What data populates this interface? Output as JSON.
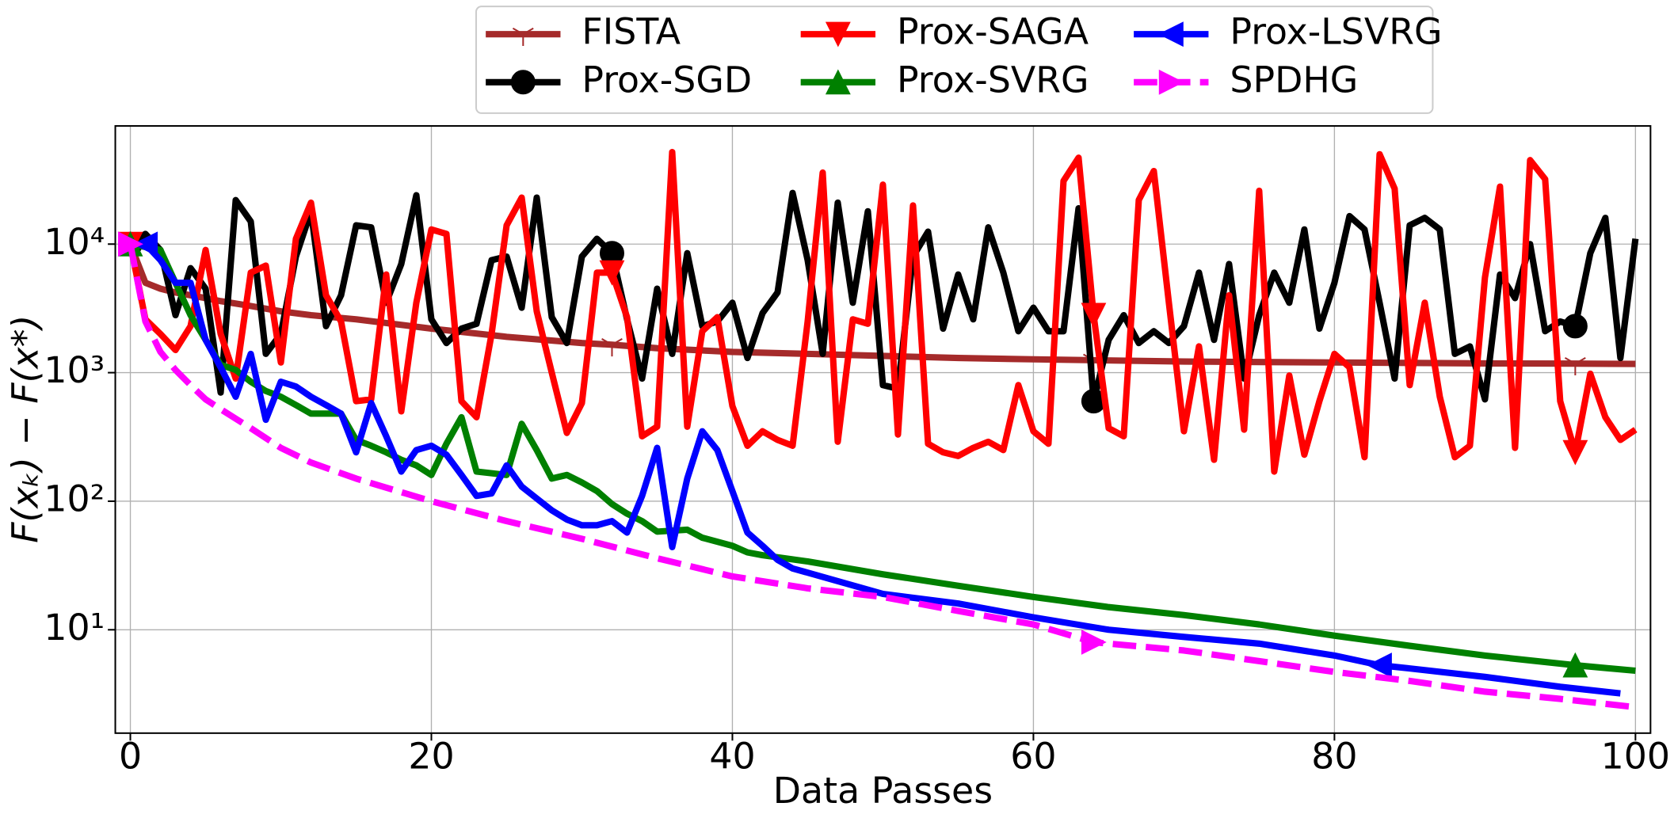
{
  "chart_data": {
    "type": "line",
    "xlabel": "Data Passes",
    "ylabel": "F(xₖ) − F(x*)",
    "xlim": [
      -1,
      101
    ],
    "ylim": [
      1.57,
      83000
    ],
    "yscale": "log",
    "xticks": [
      0,
      20,
      40,
      60,
      80,
      100
    ],
    "yticks": [
      {
        "value": 10,
        "label": "10¹"
      },
      {
        "value": 100,
        "label": "10²"
      },
      {
        "value": 1000,
        "label": "10³"
      },
      {
        "value": 10000,
        "label": "10⁴"
      }
    ],
    "grid": true,
    "legend": {
      "location": "upper center",
      "ncol": 3
    },
    "series": [
      {
        "name": "FISTA",
        "color": "#a52a2a",
        "marker": "tri_down_lines",
        "dash": false,
        "marker_x": [
          0,
          32,
          64,
          96
        ],
        "x": [
          0,
          1,
          2,
          3,
          4,
          5,
          6,
          8,
          10,
          12,
          15,
          20,
          25,
          30,
          32,
          35,
          40,
          45,
          50,
          55,
          60,
          64,
          70,
          75,
          80,
          85,
          90,
          96,
          100
        ],
        "values": [
          10000,
          5000,
          4500,
          4200,
          4000,
          3800,
          3600,
          3300,
          3000,
          2800,
          2600,
          2200,
          1900,
          1700,
          1650,
          1550,
          1450,
          1400,
          1350,
          1300,
          1270,
          1250,
          1220,
          1210,
          1200,
          1190,
          1180,
          1175,
          1170
        ]
      },
      {
        "name": "Prox-SGD",
        "color": "#000000",
        "marker": "circle",
        "dash": false,
        "marker_x": [
          0,
          32,
          64,
          96
        ],
        "x": [
          0,
          1,
          2,
          3,
          4,
          5,
          6,
          7,
          8,
          9,
          10,
          11,
          12,
          13,
          14,
          15,
          16,
          17,
          18,
          19,
          20,
          21,
          22,
          23,
          24,
          25,
          26,
          27,
          28,
          29,
          30,
          31,
          32,
          33,
          34,
          35,
          36,
          37,
          38,
          39,
          40,
          41,
          42,
          43,
          44,
          45,
          46,
          47,
          48,
          49,
          50,
          51,
          52,
          53,
          54,
          55,
          56,
          57,
          58,
          59,
          60,
          61,
          62,
          63,
          64,
          65,
          66,
          67,
          68,
          69,
          70,
          71,
          72,
          73,
          74,
          75,
          76,
          77,
          78,
          79,
          80,
          81,
          82,
          83,
          84,
          85,
          86,
          87,
          88,
          89,
          90,
          91,
          92,
          93,
          94,
          95,
          96,
          97,
          98,
          99,
          100
        ],
        "values": [
          10000,
          12000,
          9000,
          2800,
          6500,
          4500,
          700,
          22000,
          15000,
          1400,
          2000,
          8000,
          18000,
          2300,
          4000,
          14000,
          13500,
          3500,
          7000,
          24000,
          2600,
          1700,
          2200,
          2400,
          7500,
          8000,
          3200,
          23000,
          2700,
          1700,
          8000,
          11000,
          8500,
          2600,
          900,
          4500,
          1400,
          8500,
          2300,
          2500,
          3500,
          1300,
          2900,
          4200,
          25000,
          7500,
          1400,
          21000,
          3500,
          18000,
          800,
          750,
          8000,
          12500,
          2200,
          5800,
          2600,
          13500,
          6000,
          2100,
          3200,
          2100,
          2100,
          19000,
          600,
          1800,
          2800,
          1700,
          2100,
          1700,
          2300,
          6000,
          1800,
          7000,
          900,
          2800,
          6000,
          3500,
          13000,
          2200,
          5000,
          16500,
          13000,
          3500,
          900,
          14000,
          16000,
          13000,
          1400,
          1600,
          620,
          5800,
          3800,
          10000,
          2100,
          2500,
          2300,
          8500,
          16000,
          1300,
          11000
        ]
      },
      {
        "name": "Prox-SAGA",
        "color": "#ff0000",
        "marker": "tri_down",
        "dash": false,
        "marker_x": [
          0,
          32,
          64,
          96
        ],
        "x": [
          0,
          1,
          2,
          3,
          4,
          5,
          6,
          7,
          8,
          9,
          10,
          11,
          12,
          13,
          14,
          15,
          16,
          17,
          18,
          19,
          20,
          21,
          22,
          23,
          24,
          25,
          26,
          27,
          28,
          29,
          30,
          31,
          32,
          33,
          34,
          35,
          36,
          37,
          38,
          39,
          40,
          41,
          42,
          43,
          44,
          45,
          46,
          47,
          48,
          49,
          50,
          51,
          52,
          53,
          54,
          55,
          56,
          57,
          58,
          59,
          60,
          61,
          62,
          63,
          64,
          65,
          66,
          67,
          68,
          69,
          70,
          71,
          72,
          73,
          74,
          75,
          76,
          77,
          78,
          79,
          80,
          81,
          82,
          83,
          84,
          85,
          86,
          87,
          88,
          89,
          90,
          91,
          92,
          93,
          94,
          95,
          96,
          97,
          98,
          99,
          100
        ],
        "values": [
          10000,
          2600,
          2000,
          1500,
          2300,
          9000,
          2000,
          900,
          6000,
          6800,
          1200,
          11000,
          21000,
          4000,
          2500,
          600,
          620,
          5800,
          500,
          3500,
          13000,
          12000,
          600,
          450,
          2000,
          14000,
          23000,
          3000,
          1000,
          340,
          580,
          6000,
          6000,
          2700,
          320,
          380,
          52000,
          380,
          2100,
          2700,
          550,
          270,
          350,
          300,
          270,
          2500,
          36000,
          290,
          2600,
          2400,
          29000,
          330,
          20000,
          280,
          240,
          225,
          260,
          290,
          250,
          800,
          350,
          280,
          31000,
          47000,
          2800,
          370,
          320,
          22000,
          37000,
          3500,
          350,
          1600,
          210,
          4000,
          360,
          26000,
          170,
          950,
          230,
          600,
          1400,
          1100,
          220,
          50000,
          27000,
          800,
          3500,
          650,
          220,
          270,
          5500,
          28000,
          260,
          45000,
          32000,
          600,
          240,
          980,
          450,
          300,
          360
        ]
      },
      {
        "name": "Prox-SVRG",
        "color": "#008000",
        "marker": "tri_up",
        "dash": false,
        "marker_x": [
          0,
          96
        ],
        "x": [
          0,
          1,
          2,
          3,
          4,
          5,
          6,
          7,
          8,
          9,
          10,
          11,
          12,
          13,
          14,
          15,
          16,
          17,
          18,
          19,
          20,
          21,
          22,
          23,
          24,
          25,
          26,
          27,
          28,
          29,
          30,
          31,
          32,
          33,
          34,
          35,
          36,
          37,
          38,
          40,
          41,
          42,
          45,
          50,
          55,
          60,
          65,
          70,
          75,
          80,
          85,
          90,
          96,
          100
        ],
        "values": [
          10000,
          9500,
          9000,
          5000,
          2800,
          1800,
          1150,
          1050,
          850,
          720,
          650,
          560,
          480,
          480,
          480,
          300,
          270,
          240,
          210,
          190,
          160,
          280,
          450,
          170,
          165,
          160,
          400,
          250,
          150,
          160,
          140,
          120,
          95,
          80,
          70,
          58,
          59,
          60,
          52,
          45,
          40,
          38,
          34,
          27,
          22,
          18,
          15,
          13,
          11,
          9,
          7.5,
          6.3,
          5.3,
          4.8
        ]
      },
      {
        "name": "Prox-LSVRG",
        "color": "#0000ff",
        "marker": "tri_left",
        "dash": false,
        "marker_x": [
          1,
          83
        ],
        "x": [
          1,
          2,
          3,
          4,
          5,
          6,
          7,
          8,
          9,
          10,
          11,
          12,
          13,
          14,
          15,
          16,
          17,
          18,
          19,
          20,
          21,
          22,
          23,
          24,
          25,
          26,
          27,
          28,
          29,
          30,
          31,
          32,
          33,
          34,
          35,
          36,
          37,
          38,
          39,
          40,
          41,
          42,
          43,
          44,
          50,
          55,
          60,
          65,
          70,
          75,
          80,
          83,
          85,
          90,
          95,
          99
        ],
        "values": [
          10000,
          7500,
          5000,
          5000,
          1800,
          1100,
          650,
          1400,
          430,
          850,
          780,
          650,
          560,
          480,
          240,
          580,
          320,
          170,
          250,
          270,
          230,
          160,
          110,
          115,
          190,
          130,
          105,
          85,
          72,
          65,
          65,
          70,
          57,
          110,
          260,
          44,
          150,
          350,
          250,
          120,
          57,
          45,
          35,
          30,
          19,
          16,
          12.5,
          10,
          8.8,
          7.8,
          6.3,
          5.3,
          5,
          4.3,
          3.6,
          3.2
        ]
      },
      {
        "name": "SPDHG",
        "color": "#ff00ff",
        "marker": "tri_right",
        "dash": true,
        "marker_x": [
          0,
          64
        ],
        "x": [
          0,
          1,
          2,
          3,
          4,
          5,
          6,
          8,
          10,
          12,
          15,
          20,
          25,
          30,
          35,
          40,
          45,
          50,
          55,
          60,
          64,
          70,
          75,
          80,
          85,
          90,
          95,
          100
        ],
        "values": [
          10000,
          2500,
          1450,
          1050,
          800,
          620,
          520,
          370,
          260,
          200,
          150,
          100,
          70,
          51,
          36,
          26,
          21,
          18,
          14,
          11,
          8,
          6.9,
          5.7,
          4.7,
          4,
          3.3,
          2.9,
          2.5
        ]
      }
    ]
  }
}
